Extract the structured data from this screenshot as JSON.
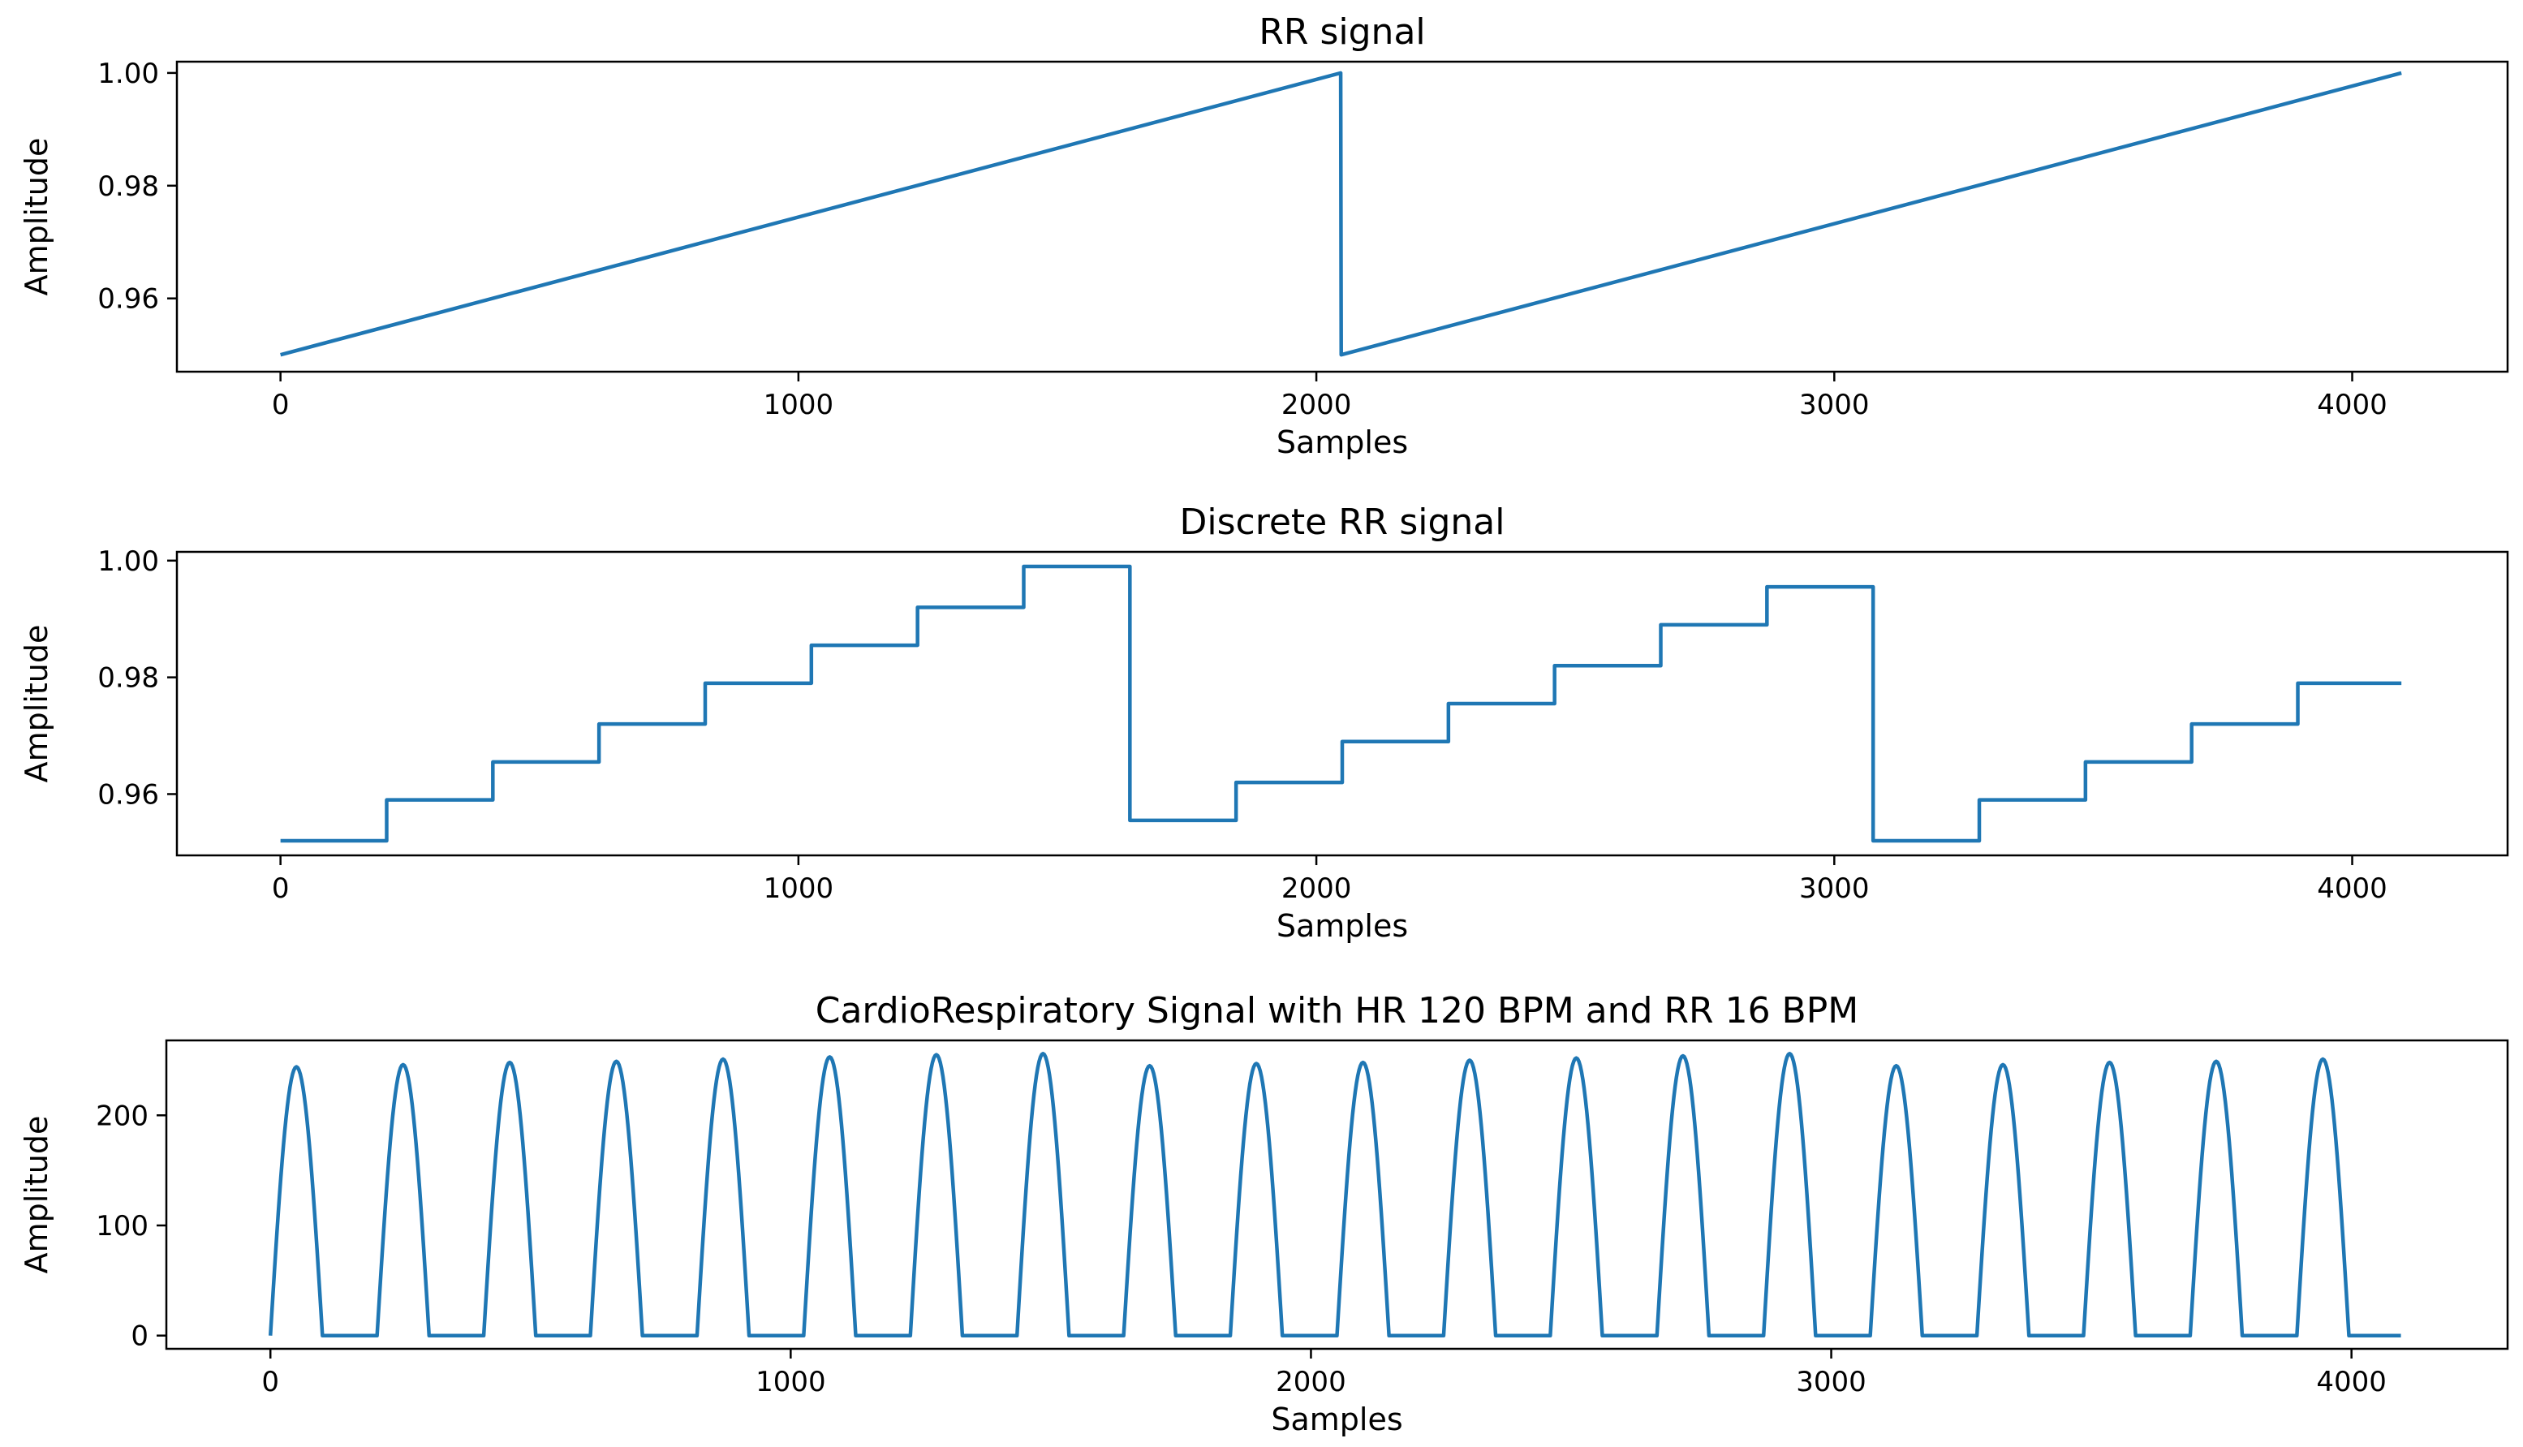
{
  "chart_data": [
    {
      "type": "line",
      "title": "RR signal",
      "xlabel": "Samples",
      "ylabel": "Amplitude",
      "xlim": [
        -200,
        4300
      ],
      "ylim": [
        0.947,
        1.002
      ],
      "xticks": [
        0,
        1000,
        2000,
        3000,
        4000
      ],
      "yticks": [
        0.96,
        0.98,
        1.0
      ],
      "ytick_labels": [
        "0.96",
        "0.98",
        "1.00"
      ],
      "grid": false,
      "color": "#1f77b4",
      "series": [
        {
          "x": [
            0,
            2047,
            2048,
            4095
          ],
          "y": [
            0.95,
            1.0,
            0.95,
            1.0
          ]
        }
      ]
    },
    {
      "type": "line",
      "title": "Discrete RR signal",
      "xlabel": "Samples",
      "ylabel": "Amplitude",
      "xlim": [
        -200,
        4300
      ],
      "ylim": [
        0.9495,
        1.0015
      ],
      "xticks": [
        0,
        1000,
        2000,
        3000,
        4000
      ],
      "yticks": [
        0.96,
        0.98,
        1.0
      ],
      "ytick_labels": [
        "0.96",
        "0.98",
        "1.00"
      ],
      "grid": false,
      "color": "#1f77b4",
      "step": true,
      "series": [
        {
          "x": [
            0,
            205,
            410,
            615,
            820,
            1025,
            1230,
            1435,
            1640,
            1845,
            2050,
            2255,
            2460,
            2665,
            2870,
            3075,
            3280,
            3485,
            3690,
            3895,
            4095
          ],
          "y": [
            0.952,
            0.959,
            0.9655,
            0.972,
            0.979,
            0.9855,
            0.992,
            0.999,
            0.9555,
            0.962,
            0.969,
            0.9755,
            0.982,
            0.989,
            0.9955,
            0.952,
            0.959,
            0.9655,
            0.972,
            0.979,
            0.979
          ]
        }
      ]
    },
    {
      "type": "line",
      "title": "CardioRespiratory Signal with HR 120 BPM and RR 16 BPM",
      "xlabel": "Samples",
      "ylabel": "Amplitude",
      "xlim": [
        -200,
        4300
      ],
      "ylim": [
        -12,
        268
      ],
      "xticks": [
        0,
        1000,
        2000,
        3000,
        4000
      ],
      "yticks": [
        0,
        100,
        200
      ],
      "ytick_labels": [
        "0",
        "100",
        "200"
      ],
      "grid": false,
      "color": "#1f77b4",
      "pulse_period": 205,
      "pulse_width": 100,
      "pulse_count": 20,
      "pulse_peaks": [
        244,
        246,
        248,
        249,
        251,
        253,
        255,
        256,
        245,
        247,
        248,
        250,
        252,
        254,
        256,
        245,
        246,
        248,
        249,
        251
      ],
      "x_end": 4095
    }
  ]
}
